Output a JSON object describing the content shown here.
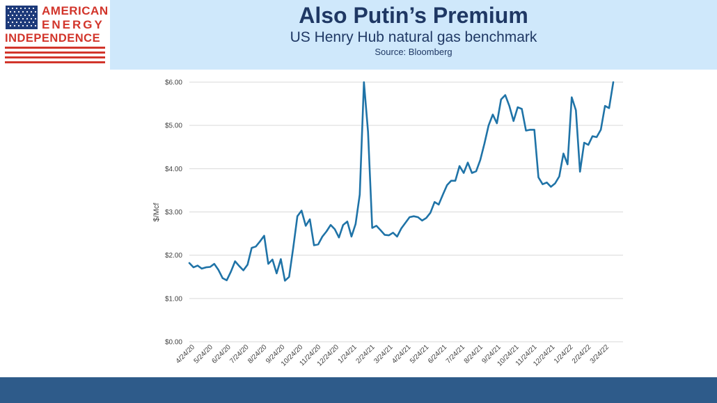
{
  "header": {
    "title": "Also Putin’s Premium",
    "subtitle": "US Henry Hub natural gas benchmark",
    "source": "Source: Bloomberg"
  },
  "logo": {
    "line1": "AMERICAN",
    "line2": "ENERGY",
    "line3": "INDEPENDENCE",
    "flag_icon": "us-flag-icon"
  },
  "colors": {
    "header_band": "#cfe8fb",
    "title_text": "#1f3864",
    "logo_red": "#d2352b",
    "logo_blue": "#1d3a7a",
    "line": "#1f73a7",
    "grid": "#d9d9d9",
    "footer_band": "#2e5b8a"
  },
  "chart_data": {
    "type": "line",
    "title": "",
    "xlabel": "",
    "ylabel": "$/Mcf",
    "ylim": [
      0,
      6
    ],
    "y_ticks": [
      0,
      1,
      2,
      3,
      4,
      5,
      6
    ],
    "y_tick_labels": [
      "$0.00",
      "$1.00",
      "$2.00",
      "$3.00",
      "$4.00",
      "$5.00",
      "$6.00"
    ],
    "x_tick_labels": [
      "4/24/20",
      "5/24/20",
      "6/24/20",
      "7/24/20",
      "8/24/20",
      "9/24/20",
      "10/24/20",
      "11/24/20",
      "12/24/20",
      "1/24/21",
      "2/24/21",
      "3/24/21",
      "4/24/21",
      "5/24/21",
      "6/24/21",
      "7/24/21",
      "8/24/21",
      "9/24/21",
      "10/24/21",
      "11/24/21",
      "12/24/21",
      "1/24/22",
      "2/24/22",
      "3/24/22"
    ],
    "grid": true,
    "legend": "none",
    "series": [
      {
        "values": [
          1.82,
          1.72,
          1.76,
          1.69,
          1.72,
          1.73,
          1.8,
          1.66,
          1.47,
          1.42,
          1.62,
          1.86,
          1.75,
          1.65,
          1.78,
          2.17,
          2.2,
          2.32,
          2.45,
          1.8,
          1.9,
          1.58,
          1.91,
          1.41,
          1.5,
          2.18,
          2.9,
          3.03,
          2.68,
          2.83,
          2.23,
          2.25,
          2.43,
          2.55,
          2.7,
          2.6,
          2.41,
          2.7,
          2.78,
          2.43,
          2.72,
          3.4,
          6.0,
          4.85,
          2.63,
          2.68,
          2.58,
          2.47,
          2.46,
          2.52,
          2.43,
          2.62,
          2.75,
          2.88,
          2.9,
          2.88,
          2.8,
          2.86,
          2.98,
          3.23,
          3.17,
          3.4,
          3.62,
          3.72,
          3.72,
          4.06,
          3.9,
          4.14,
          3.9,
          3.94,
          4.2,
          4.58,
          5.0,
          5.25,
          5.05,
          5.6,
          5.7,
          5.45,
          5.1,
          5.42,
          5.38,
          4.88,
          4.9,
          4.9,
          3.8,
          3.64,
          3.68,
          3.58,
          3.66,
          3.82,
          4.35,
          4.1,
          5.65,
          5.35,
          3.93,
          4.6,
          4.55,
          4.75,
          4.73,
          4.9,
          5.45,
          5.4,
          6.0
        ]
      }
    ]
  }
}
